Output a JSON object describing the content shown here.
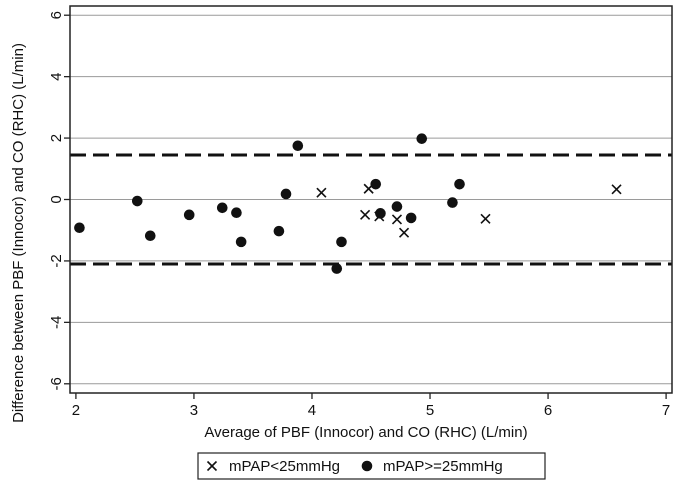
{
  "chart_data": {
    "type": "scatter",
    "xlabel": "Average of PBF (Innocor) and CO (RHC) (L/min)",
    "ylabel": "Difference between PBF (Innocor) and CO (RHC) (L/min)",
    "xlim": [
      1.95,
      7.05
    ],
    "ylim": [
      -6.3,
      6.3
    ],
    "xticks": [
      2,
      3,
      4,
      5,
      6,
      7
    ],
    "yticks": [
      -6,
      -4,
      -2,
      0,
      2,
      4,
      6
    ],
    "grid": "horizontal",
    "legend_position": "bottom",
    "reference_lines": [
      {
        "y": 1.45,
        "style": "dashed"
      },
      {
        "y": -2.1,
        "style": "dashed"
      }
    ],
    "series": [
      {
        "name": "mPAP<25mmHg",
        "marker": "cross",
        "points": [
          {
            "x": 4.08,
            "y": 0.22
          },
          {
            "x": 4.45,
            "y": -0.5
          },
          {
            "x": 4.48,
            "y": 0.35
          },
          {
            "x": 4.57,
            "y": -0.55
          },
          {
            "x": 4.72,
            "y": -0.65
          },
          {
            "x": 4.78,
            "y": -1.08
          },
          {
            "x": 5.47,
            "y": -0.63
          },
          {
            "x": 6.58,
            "y": 0.33
          }
        ]
      },
      {
        "name": "mPAP>=25mmHg",
        "marker": "dot",
        "points": [
          {
            "x": 2.03,
            "y": -0.92
          },
          {
            "x": 2.52,
            "y": -0.05
          },
          {
            "x": 2.63,
            "y": -1.18
          },
          {
            "x": 2.96,
            "y": -0.5
          },
          {
            "x": 3.24,
            "y": -0.27
          },
          {
            "x": 3.36,
            "y": -0.43
          },
          {
            "x": 3.4,
            "y": -1.38
          },
          {
            "x": 3.72,
            "y": -1.03
          },
          {
            "x": 3.78,
            "y": 0.18
          },
          {
            "x": 3.88,
            "y": 1.75
          },
          {
            "x": 4.21,
            "y": -2.25
          },
          {
            "x": 4.25,
            "y": -1.38
          },
          {
            "x": 4.54,
            "y": 0.5
          },
          {
            "x": 4.58,
            "y": -0.45
          },
          {
            "x": 4.72,
            "y": -0.23
          },
          {
            "x": 4.84,
            "y": -0.6
          },
          {
            "x": 4.93,
            "y": 1.98
          },
          {
            "x": 5.19,
            "y": -0.1
          },
          {
            "x": 5.25,
            "y": 0.5
          }
        ]
      }
    ]
  }
}
